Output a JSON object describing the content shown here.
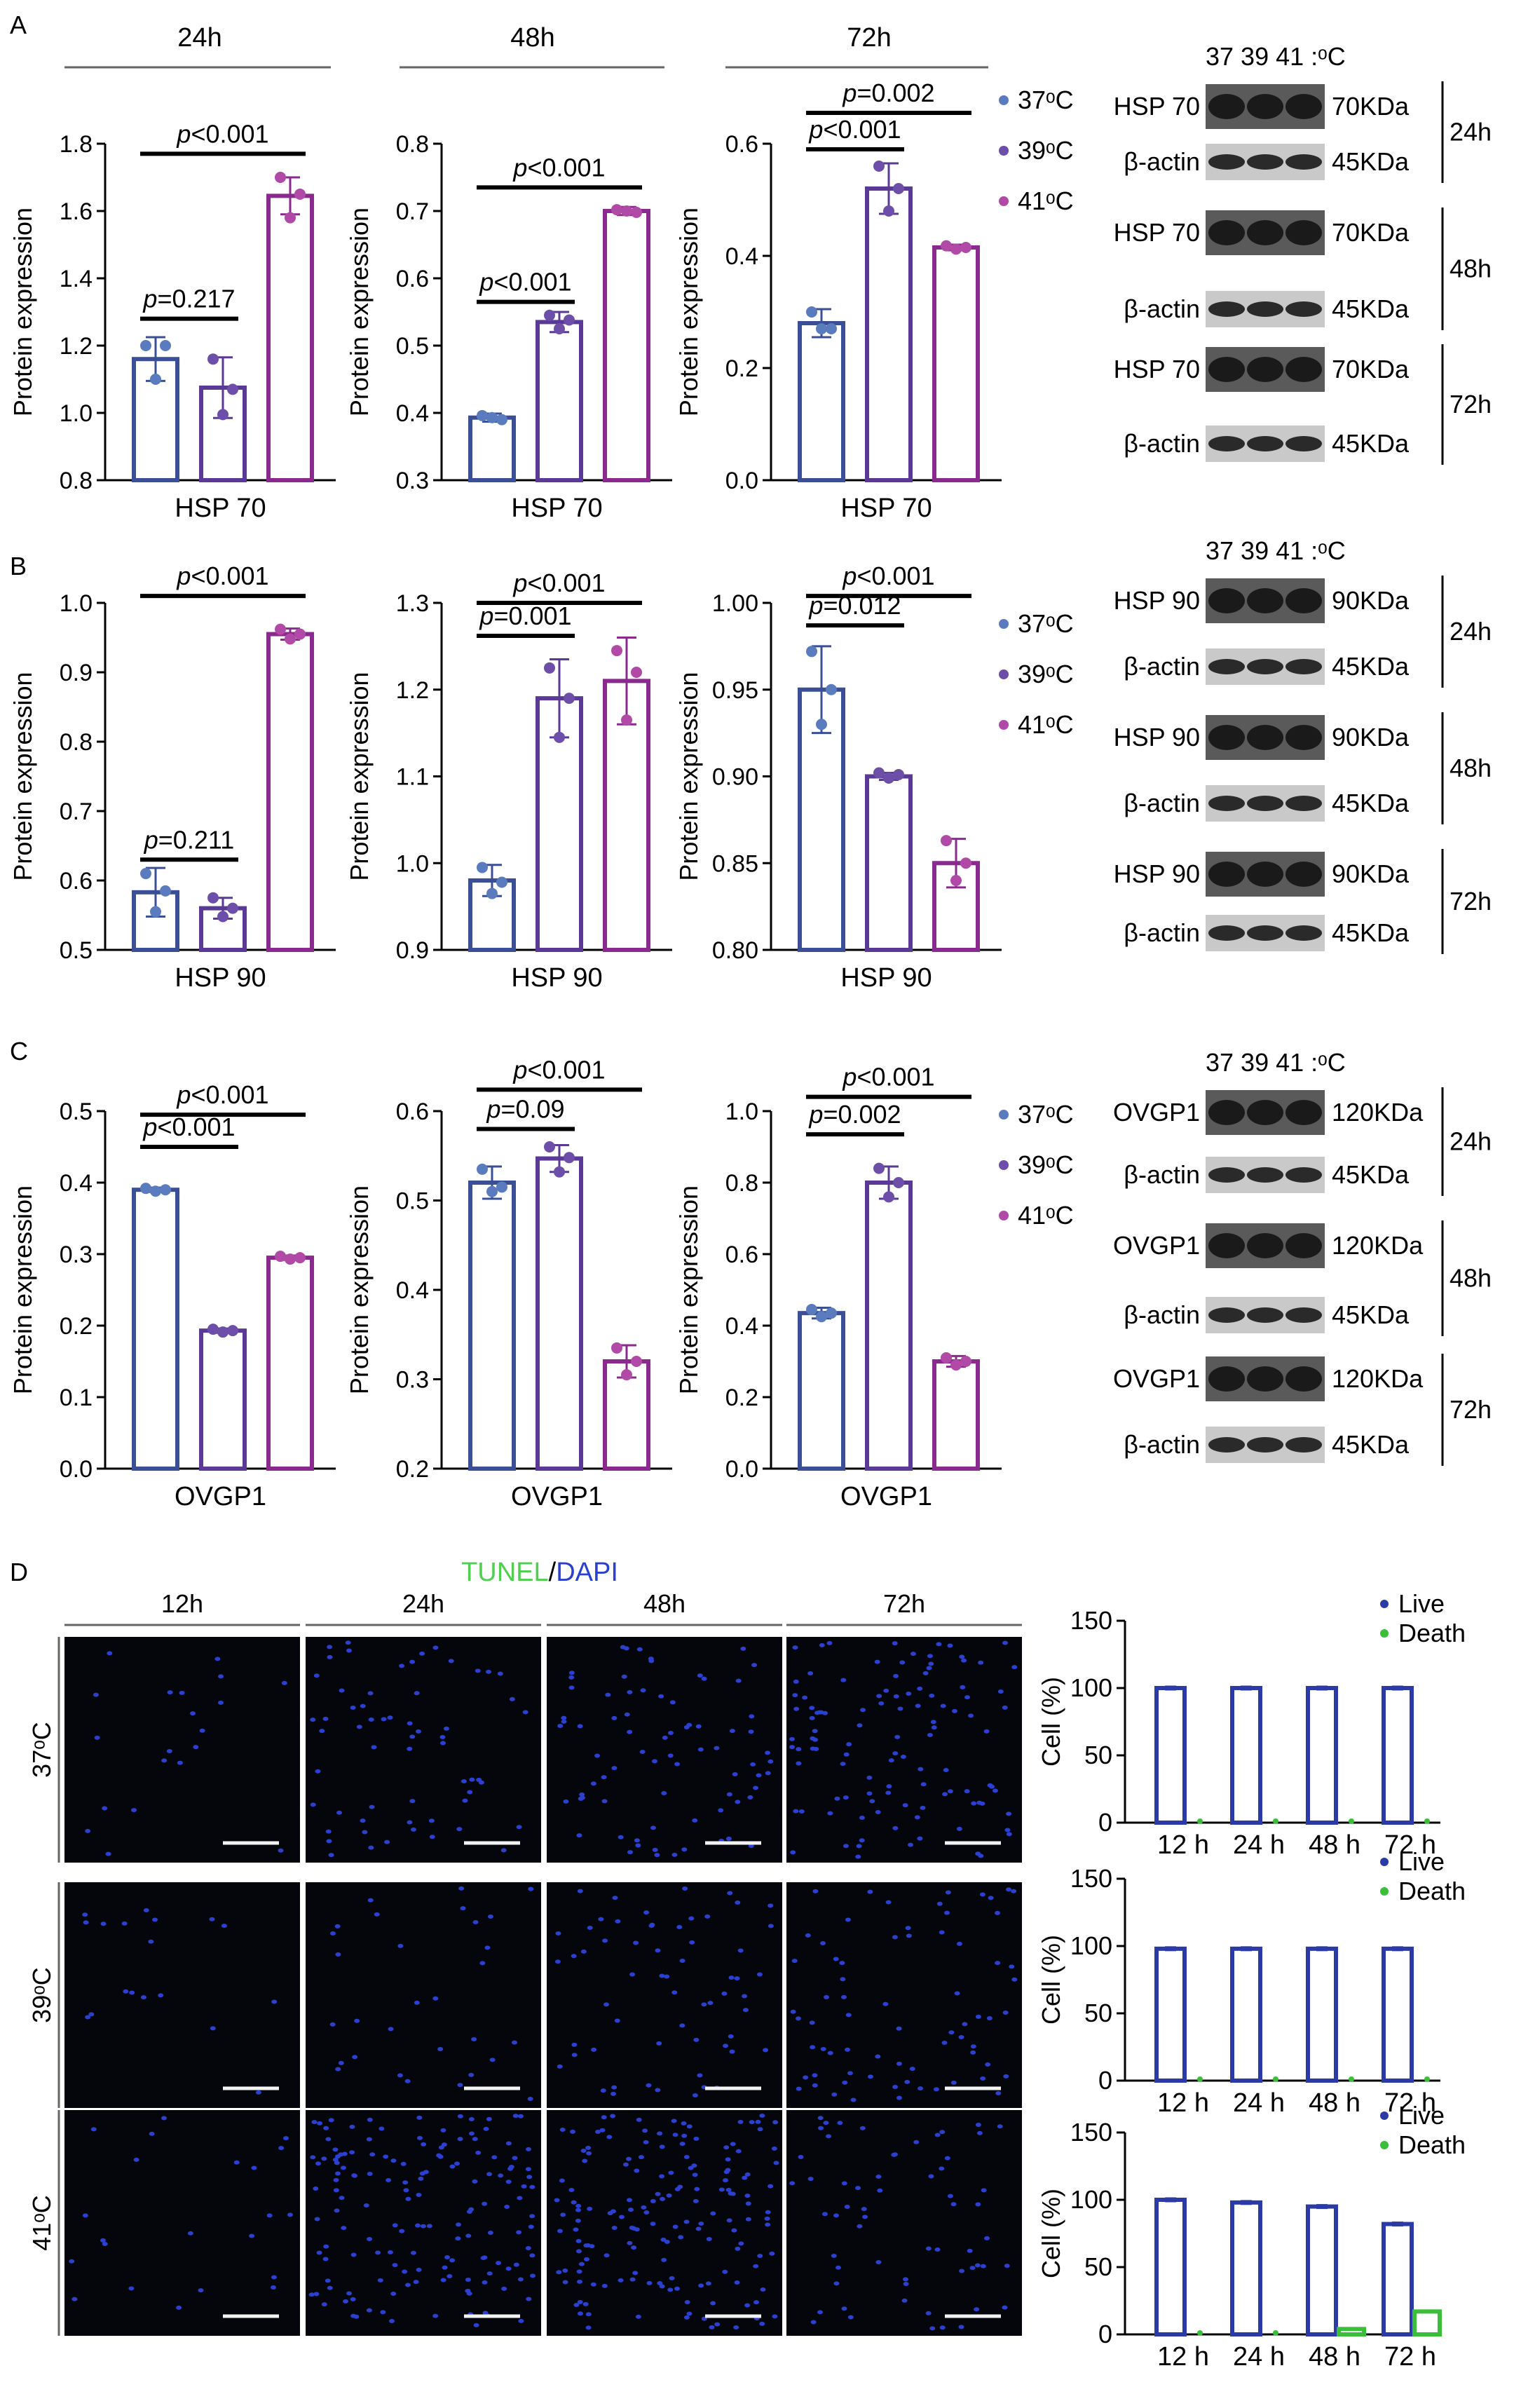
{
  "chart_data": [
    {
      "type": "bar",
      "panel": "A",
      "title": "24h",
      "xlabel": "HSP 70",
      "ylabel": "Protein expression",
      "ylim": [
        0.8,
        1.8
      ],
      "yticks": [
        "0.8",
        "1.0",
        "1.2",
        "1.4",
        "1.6",
        "1.8"
      ],
      "categories": [
        "37°C",
        "39°C",
        "41°C"
      ],
      "values": [
        1.16,
        1.075,
        1.645
      ],
      "errors": [
        0.065,
        0.09,
        0.055
      ],
      "points": [
        [
          1.2,
          1.2,
          1.1
        ],
        [
          1.16,
          1.07,
          0.995
        ],
        [
          1.7,
          1.65,
          1.58
        ]
      ],
      "annotations": [
        {
          "label": "=0.217",
          "from": 0,
          "to": 1,
          "y": 1.28
        },
        {
          "label": "<0.001",
          "from": 0,
          "to": 2,
          "y": 1.77
        }
      ]
    },
    {
      "type": "bar",
      "panel": "A",
      "title": "48h",
      "xlabel": "HSP 70",
      "ylabel": "Protein expression",
      "ylim": [
        0.3,
        0.8
      ],
      "yticks": [
        "0.3",
        "0.4",
        "0.5",
        "0.6",
        "0.7",
        "0.8"
      ],
      "categories": [
        "37°C",
        "39°C",
        "41°C"
      ],
      "values": [
        0.393,
        0.535,
        0.7
      ],
      "errors": [
        0.006,
        0.015,
        0.006
      ],
      "points": [
        [
          0.396,
          0.39,
          0.393
        ],
        [
          0.545,
          0.538,
          0.525
        ],
        [
          0.702,
          0.698,
          0.7
        ]
      ],
      "annotations": [
        {
          "label": "<0.001",
          "from": 0,
          "to": 1,
          "y": 0.565
        },
        {
          "label": "<0.001",
          "from": 0,
          "to": 2,
          "y": 0.735
        }
      ]
    },
    {
      "type": "bar",
      "panel": "A",
      "title": "72h",
      "xlabel": "HSP 70",
      "ylabel": "Protein expression",
      "ylim": [
        0.0,
        0.6
      ],
      "yticks": [
        "0.0",
        "0.2",
        "0.4",
        "0.6"
      ],
      "categories": [
        "37°C",
        "39°C",
        "41°C"
      ],
      "values": [
        0.28,
        0.52,
        0.415
      ],
      "errors": [
        0.025,
        0.045,
        0.005
      ],
      "points": [
        [
          0.3,
          0.27,
          0.27
        ],
        [
          0.56,
          0.52,
          0.48
        ],
        [
          0.418,
          0.415,
          0.412
        ]
      ],
      "annotations": [
        {
          "label": "<0.001",
          "from": 0,
          "to": 1,
          "y": 0.59
        },
        {
          "label": "=0.002",
          "from": 0,
          "to": 2,
          "y": 0.655
        }
      ]
    },
    {
      "type": "bar",
      "panel": "B",
      "title": "",
      "xlabel": "HSP 90",
      "ylabel": "Protein expression",
      "ylim": [
        0.5,
        1.0
      ],
      "yticks": [
        "0.5",
        "0.6",
        "0.7",
        "0.8",
        "0.9",
        "1.0"
      ],
      "categories": [
        "37°C",
        "39°C",
        "41°C"
      ],
      "values": [
        0.583,
        0.56,
        0.955
      ],
      "errors": [
        0.035,
        0.015,
        0.008
      ],
      "points": [
        [
          0.61,
          0.585,
          0.555
        ],
        [
          0.575,
          0.56,
          0.548
        ],
        [
          0.962,
          0.955,
          0.948
        ]
      ],
      "annotations": [
        {
          "label": "=0.211",
          "from": 0,
          "to": 1,
          "y": 0.63
        },
        {
          "label": "<0.001",
          "from": 0,
          "to": 2,
          "y": 1.01
        }
      ]
    },
    {
      "type": "bar",
      "panel": "B",
      "title": "",
      "xlabel": "HSP 90",
      "ylabel": "Protein expression",
      "ylim": [
        0.9,
        1.3
      ],
      "yticks": [
        "0.9",
        "1.0",
        "1.1",
        "1.2",
        "1.3"
      ],
      "categories": [
        "37°C",
        "39°C",
        "41°C"
      ],
      "values": [
        0.98,
        1.19,
        1.21
      ],
      "errors": [
        0.018,
        0.045,
        0.05
      ],
      "points": [
        [
          0.995,
          0.978,
          0.965
        ],
        [
          1.225,
          1.19,
          1.145
        ],
        [
          1.245,
          1.22,
          1.165
        ]
      ],
      "annotations": [
        {
          "label": "=0.001",
          "from": 0,
          "to": 1,
          "y": 1.262
        },
        {
          "label": "<0.001",
          "from": 0,
          "to": 2,
          "y": 1.3
        }
      ]
    },
    {
      "type": "bar",
      "panel": "B",
      "title": "",
      "xlabel": "HSP 90",
      "ylabel": "Protein expression",
      "ylim": [
        0.8,
        1.0
      ],
      "yticks": [
        "0.80",
        "0.85",
        "0.90",
        "0.95",
        "1.00"
      ],
      "categories": [
        "37°C",
        "39°C",
        "41°C"
      ],
      "values": [
        0.95,
        0.9,
        0.85
      ],
      "errors": [
        0.025,
        0.002,
        0.014
      ],
      "points": [
        [
          0.972,
          0.95,
          0.93
        ],
        [
          0.902,
          0.901,
          0.899
        ],
        [
          0.863,
          0.85,
          0.84
        ]
      ],
      "annotations": [
        {
          "label": "=0.012",
          "from": 0,
          "to": 1,
          "y": 0.987
        },
        {
          "label": "<0.001",
          "from": 0,
          "to": 2,
          "y": 1.004
        }
      ]
    },
    {
      "type": "bar",
      "panel": "C",
      "title": "",
      "xlabel": "OVGP1",
      "ylabel": "Protein expression",
      "ylim": [
        0.0,
        0.5
      ],
      "yticks": [
        "0.0",
        "0.1",
        "0.2",
        "0.3",
        "0.4",
        "0.5"
      ],
      "categories": [
        "37°C",
        "39°C",
        "41°C"
      ],
      "values": [
        0.39,
        0.193,
        0.295
      ],
      "errors": [
        0.003,
        0.003,
        0.003
      ],
      "points": [
        [
          0.392,
          0.39,
          0.388
        ],
        [
          0.195,
          0.193,
          0.191
        ],
        [
          0.297,
          0.295,
          0.293
        ]
      ],
      "annotations": [
        {
          "label": "<0.001",
          "from": 0,
          "to": 1,
          "y": 0.45
        },
        {
          "label": "<0.001",
          "from": 0,
          "to": 2,
          "y": 0.495
        }
      ]
    },
    {
      "type": "bar",
      "panel": "C",
      "title": "",
      "xlabel": "OVGP1",
      "ylabel": "Protein expression",
      "ylim": [
        0.2,
        0.6
      ],
      "yticks": [
        "0.2",
        "0.3",
        "0.4",
        "0.5",
        "0.6"
      ],
      "categories": [
        "37°C",
        "39°C",
        "41°C"
      ],
      "values": [
        0.52,
        0.547,
        0.32
      ],
      "errors": [
        0.018,
        0.015,
        0.018
      ],
      "points": [
        [
          0.535,
          0.515,
          0.51
        ],
        [
          0.56,
          0.548,
          0.532
        ],
        [
          0.335,
          0.32,
          0.305
        ]
      ],
      "annotations": [
        {
          "label": "=0.09",
          "from": 0,
          "to": 1,
          "y": 0.58
        },
        {
          "label": "<0.001",
          "from": 0,
          "to": 2,
          "y": 0.624
        }
      ]
    },
    {
      "type": "bar",
      "panel": "C",
      "title": "",
      "xlabel": "OVGP1",
      "ylabel": "Protein expression",
      "ylim": [
        0.0,
        1.0
      ],
      "yticks": [
        "0.0",
        "0.2",
        "0.4",
        "0.6",
        "0.8",
        "1.0"
      ],
      "categories": [
        "37°C",
        "39°C",
        "41°C"
      ],
      "values": [
        0.435,
        0.8,
        0.3
      ],
      "errors": [
        0.015,
        0.045,
        0.015
      ],
      "points": [
        [
          0.445,
          0.435,
          0.425
        ],
        [
          0.84,
          0.8,
          0.76
        ],
        [
          0.31,
          0.3,
          0.29
        ]
      ],
      "annotations": [
        {
          "label": "=0.002",
          "from": 0,
          "to": 1,
          "y": 0.935
        },
        {
          "label": "<0.001",
          "from": 0,
          "to": 2,
          "y": 1.04
        }
      ]
    },
    {
      "type": "bar",
      "panel": "D",
      "title": "",
      "xlabel": "",
      "ylabel": "Cell (%)",
      "ylim": [
        0,
        150
      ],
      "yticks": [
        "0",
        "50",
        "100",
        "150"
      ],
      "categories": [
        "12 h",
        "24 h",
        "48 h",
        "72 h"
      ],
      "series": [
        {
          "name": "Live",
          "values": [
            100,
            100,
            100,
            100
          ]
        },
        {
          "name": "Death",
          "values": [
            0,
            0,
            0,
            0
          ]
        }
      ]
    },
    {
      "type": "bar",
      "panel": "D",
      "title": "",
      "xlabel": "",
      "ylabel": "Cell (%)",
      "ylim": [
        0,
        150
      ],
      "yticks": [
        "0",
        "50",
        "100",
        "150"
      ],
      "categories": [
        "12 h",
        "24 h",
        "48 h",
        "72 h"
      ],
      "series": [
        {
          "name": "Live",
          "values": [
            98,
            98,
            98,
            98
          ]
        },
        {
          "name": "Death",
          "values": [
            0,
            0,
            0,
            0
          ]
        }
      ]
    },
    {
      "type": "bar",
      "panel": "D",
      "title": "",
      "xlabel": "",
      "ylabel": "Cell (%)",
      "ylim": [
        0,
        150
      ],
      "yticks": [
        "0",
        "50",
        "100",
        "150"
      ],
      "categories": [
        "12 h",
        "24 h",
        "48 h",
        "72 h"
      ],
      "series": [
        {
          "name": "Live",
          "values": [
            100,
            98,
            95,
            82
          ]
        },
        {
          "name": "Death",
          "values": [
            0,
            0,
            4,
            17
          ]
        }
      ]
    }
  ],
  "labels": {
    "panels": [
      "A",
      "B",
      "C",
      "D"
    ],
    "p_italic": "p",
    "timepoints": [
      "24h",
      "48h",
      "72h"
    ],
    "temp_legend": [
      "37ᵒC",
      "39ᵒC",
      "41ᵒC"
    ],
    "blot_header": "37  39  41 :ᵒC",
    "blots": {
      "A": {
        "protein": "HSP 70",
        "kda": "70KDa",
        "actin": "β-actin",
        "actin_kda": "45KDa",
        "times": [
          "24h",
          "48h",
          "72h"
        ]
      },
      "B": {
        "protein": "HSP 90",
        "kda": "90KDa",
        "actin": "β-actin",
        "actin_kda": "45KDa",
        "times": [
          "24h",
          "48h",
          "72h"
        ]
      },
      "C": {
        "protein": "OVGP1",
        "kda": "120KDa",
        "actin": "β-actin",
        "actin_kda": "45KDa",
        "times": [
          "24h",
          "48h",
          "72h"
        ]
      }
    },
    "tunel_title_green": "TUNEL",
    "tunel_title_sep": "/",
    "tunel_title_blue": "DAPI",
    "tunel_cols": [
      "12h",
      "24h",
      "48h",
      "72h"
    ],
    "tunel_rows": [
      "37ᵒC",
      "39ᵒC",
      "41ᵒC"
    ],
    "cell_legend": [
      "Live",
      "Death"
    ]
  },
  "colors": {
    "c37": "#5b7bbf",
    "c39": "#6d4ea8",
    "c41": "#b04aa6",
    "bar37": "#3b4f96",
    "bar39": "#5a3a96",
    "bar41": "#8a2a8f",
    "live": "#2c3aa5",
    "death": "#3bbf3b",
    "dapi": "#2b3fd0",
    "tunel": "#4fcf4f"
  }
}
